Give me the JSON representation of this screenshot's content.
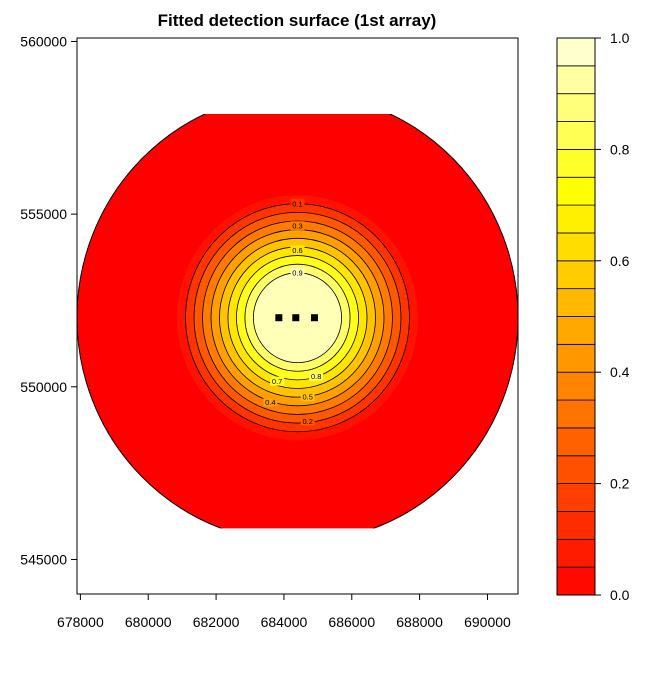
{
  "chart_data": {
    "type": "heatmap",
    "title": "Fitted detection surface (1st array)",
    "xlabel": "",
    "ylabel": "",
    "xlim": [
      677900,
      690900
    ],
    "ylim": [
      544000,
      560100
    ],
    "x_ticks": [
      678000,
      680000,
      682000,
      684000,
      686000,
      688000,
      690000
    ],
    "x_tick_labels": [
      "678000",
      "680000",
      "682000",
      "684000",
      "686000",
      "688000",
      "690000"
    ],
    "y_ticks": [
      545000,
      550000,
      555000,
      560000
    ],
    "y_tick_labels": [
      "545000",
      "550000",
      "555000",
      "560000"
    ],
    "grid": false,
    "surface": {
      "center_x": 684400,
      "center_y": 552000,
      "outer_boundary_radius": 6500,
      "outer_boundary_x_extent": [
        677900,
        690900
      ],
      "outer_boundary_y_extent": [
        545900,
        557900
      ]
    },
    "contour_levels": [
      0.1,
      0.2,
      0.3,
      0.4,
      0.5,
      0.6,
      0.7,
      0.8,
      0.9
    ],
    "contour_radii": [
      3300,
      3050,
      2800,
      2550,
      2300,
      2050,
      1800,
      1550,
      1300
    ],
    "contour_labels": [
      {
        "text": "0.1",
        "level": 0.1,
        "x": 684400,
        "y": 555300
      },
      {
        "text": "0.3",
        "level": 0.3,
        "x": 684400,
        "y": 554650
      },
      {
        "text": "0.6",
        "level": 0.6,
        "x": 684400,
        "y": 553950
      },
      {
        "text": "0.9",
        "level": 0.9,
        "x": 684400,
        "y": 553300
      },
      {
        "text": "0.7",
        "level": 0.7,
        "x": 683800,
        "y": 550150
      },
      {
        "text": "0.8",
        "level": 0.8,
        "x": 684950,
        "y": 550300
      },
      {
        "text": "0.4",
        "level": 0.4,
        "x": 683600,
        "y": 549550
      },
      {
        "text": "0.5",
        "level": 0.5,
        "x": 684700,
        "y": 549700
      },
      {
        "text": "0.2",
        "level": 0.2,
        "x": 684700,
        "y": 549000
      }
    ],
    "detectors": [
      {
        "x": 683850,
        "y": 552000
      },
      {
        "x": 684350,
        "y": 552000
      },
      {
        "x": 684900,
        "y": 552000
      }
    ],
    "colorbar": {
      "range": [
        0.0,
        1.0
      ],
      "n_bins": 20,
      "tick_values": [
        0.0,
        0.2,
        0.4,
        0.6,
        0.8,
        1.0
      ],
      "tick_labels": [
        "0.0",
        "0.2",
        "0.4",
        "0.6",
        "0.8",
        "1.0"
      ]
    },
    "colors": {
      "low": "#ff0000",
      "high": "#ffffe0",
      "contour_line": "#000000",
      "detector": "#000000",
      "frame": "#000000"
    }
  }
}
